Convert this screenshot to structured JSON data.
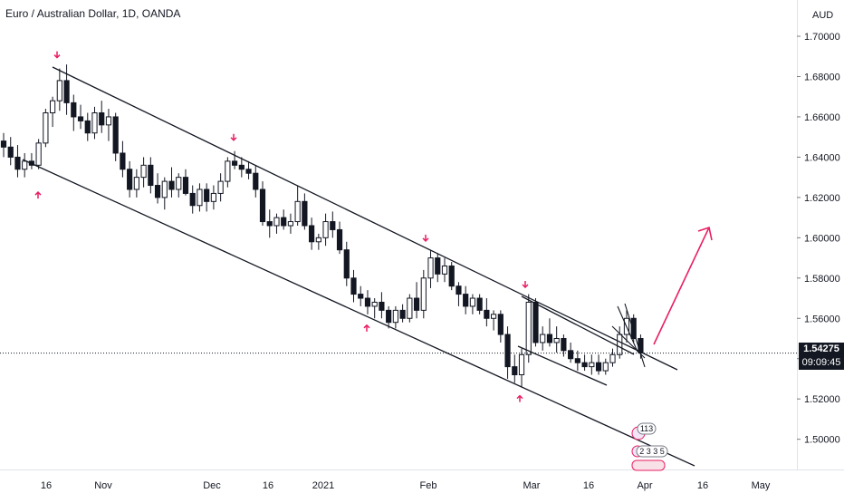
{
  "header": {
    "title": "Euro / Australian Dollar, 1D, OANDA"
  },
  "axis": {
    "currency": "AUD"
  },
  "current_price": {
    "value": "1.54275",
    "countdown": "09:09:45"
  },
  "badges": {
    "count": "113",
    "numbers": "2 3 3 5"
  },
  "chart_data": {
    "type": "candlestick",
    "title": "Euro / Australian Dollar, 1D, OANDA",
    "y_unit": "AUD",
    "ylim": [
      1.485,
      1.718
    ],
    "y_ticks": [
      "1.70000",
      "1.68000",
      "1.66000",
      "1.64000",
      "1.62000",
      "1.60000",
      "1.58000",
      "1.56000",
      "1.54000",
      "1.52000",
      "1.50000"
    ],
    "x_ticks": [
      "16",
      "Nov",
      "Dec",
      "16",
      "2021",
      "Feb",
      "Mar",
      "16",
      "Apr",
      "16",
      "May"
    ],
    "grid": false,
    "colors": {
      "candle": "#131722",
      "trendline": "#131722",
      "marker": "#e91e63",
      "arrow": "#e91e63",
      "background": "#ffffff"
    },
    "series": [
      {
        "ohlc": [
          [
            1.648,
            1.652,
            1.64,
            1.645
          ],
          [
            1.645,
            1.65,
            1.636,
            1.64
          ],
          [
            1.64,
            1.646,
            1.63,
            1.634
          ],
          [
            1.634,
            1.642,
            1.63,
            1.638
          ],
          [
            1.638,
            1.642,
            1.634,
            1.636
          ],
          [
            1.636,
            1.649,
            1.634,
            1.647
          ],
          [
            1.647,
            1.664,
            1.645,
            1.662
          ],
          [
            1.662,
            1.67,
            1.655,
            1.668
          ],
          [
            1.668,
            1.684,
            1.663,
            1.678
          ],
          [
            1.678,
            1.686,
            1.661,
            1.667
          ],
          [
            1.667,
            1.671,
            1.653,
            1.66
          ],
          [
            1.66,
            1.666,
            1.654,
            1.658
          ],
          [
            1.658,
            1.662,
            1.648,
            1.652
          ],
          [
            1.652,
            1.665,
            1.649,
            1.662
          ],
          [
            1.662,
            1.668,
            1.652,
            1.656
          ],
          [
            1.656,
            1.664,
            1.648,
            1.66
          ],
          [
            1.66,
            1.662,
            1.638,
            1.642
          ],
          [
            1.642,
            1.648,
            1.63,
            1.634
          ],
          [
            1.634,
            1.638,
            1.62,
            1.624
          ],
          [
            1.624,
            1.634,
            1.62,
            1.63
          ],
          [
            1.63,
            1.64,
            1.625,
            1.636
          ],
          [
            1.636,
            1.64,
            1.622,
            1.626
          ],
          [
            1.626,
            1.632,
            1.617,
            1.62
          ],
          [
            1.62,
            1.63,
            1.614,
            1.628
          ],
          [
            1.628,
            1.635,
            1.62,
            1.624
          ],
          [
            1.624,
            1.632,
            1.62,
            1.63
          ],
          [
            1.63,
            1.634,
            1.621,
            1.622
          ],
          [
            1.622,
            1.626,
            1.612,
            1.616
          ],
          [
            1.616,
            1.627,
            1.613,
            1.624
          ],
          [
            1.624,
            1.627,
            1.613,
            1.618
          ],
          [
            1.618,
            1.626,
            1.614,
            1.622
          ],
          [
            1.622,
            1.632,
            1.618,
            1.628
          ],
          [
            1.628,
            1.64,
            1.625,
            1.638
          ],
          [
            1.638,
            1.643,
            1.634,
            1.636
          ],
          [
            1.636,
            1.64,
            1.63,
            1.634
          ],
          [
            1.634,
            1.638,
            1.629,
            1.632
          ],
          [
            1.632,
            1.636,
            1.62,
            1.624
          ],
          [
            1.624,
            1.628,
            1.606,
            1.608
          ],
          [
            1.608,
            1.614,
            1.6,
            1.606
          ],
          [
            1.606,
            1.612,
            1.602,
            1.61
          ],
          [
            1.61,
            1.614,
            1.604,
            1.606
          ],
          [
            1.606,
            1.612,
            1.602,
            1.608
          ],
          [
            1.608,
            1.626,
            1.606,
            1.618
          ],
          [
            1.618,
            1.622,
            1.604,
            1.606
          ],
          [
            1.606,
            1.61,
            1.594,
            1.598
          ],
          [
            1.598,
            1.602,
            1.594,
            1.6
          ],
          [
            1.6,
            1.612,
            1.596,
            1.608
          ],
          [
            1.608,
            1.613,
            1.6,
            1.604
          ],
          [
            1.604,
            1.608,
            1.592,
            1.594
          ],
          [
            1.594,
            1.598,
            1.576,
            1.58
          ],
          [
            1.58,
            1.584,
            1.568,
            1.572
          ],
          [
            1.572,
            1.576,
            1.566,
            1.57
          ],
          [
            1.57,
            1.574,
            1.562,
            1.566
          ],
          [
            1.566,
            1.57,
            1.56,
            1.568
          ],
          [
            1.568,
            1.573,
            1.56,
            1.564
          ],
          [
            1.564,
            1.566,
            1.555,
            1.558
          ],
          [
            1.558,
            1.566,
            1.555,
            1.564
          ],
          [
            1.564,
            1.567,
            1.558,
            1.56
          ],
          [
            1.56,
            1.572,
            1.558,
            1.57
          ],
          [
            1.57,
            1.578,
            1.56,
            1.564
          ],
          [
            1.564,
            1.584,
            1.56,
            1.58
          ],
          [
            1.58,
            1.594,
            1.575,
            1.59
          ],
          [
            1.59,
            1.592,
            1.578,
            1.582
          ],
          [
            1.582,
            1.59,
            1.578,
            1.586
          ],
          [
            1.586,
            1.588,
            1.574,
            1.576
          ],
          [
            1.576,
            1.578,
            1.566,
            1.572
          ],
          [
            1.572,
            1.576,
            1.562,
            1.566
          ],
          [
            1.566,
            1.572,
            1.562,
            1.57
          ],
          [
            1.57,
            1.572,
            1.562,
            1.564
          ],
          [
            1.564,
            1.57,
            1.556,
            1.56
          ],
          [
            1.56,
            1.564,
            1.554,
            1.562
          ],
          [
            1.562,
            1.564,
            1.548,
            1.552
          ],
          [
            1.552,
            1.556,
            1.53,
            1.536
          ],
          [
            1.536,
            1.542,
            1.528,
            1.532
          ],
          [
            1.532,
            1.545,
            1.526,
            1.542
          ],
          [
            1.542,
            1.572,
            1.538,
            1.568
          ],
          [
            1.568,
            1.57,
            1.546,
            1.548
          ],
          [
            1.548,
            1.556,
            1.544,
            1.552
          ],
          [
            1.552,
            1.56,
            1.546,
            1.548
          ],
          [
            1.548,
            1.556,
            1.543,
            1.55
          ],
          [
            1.55,
            1.552,
            1.541,
            1.544
          ],
          [
            1.544,
            1.548,
            1.538,
            1.54
          ],
          [
            1.54,
            1.544,
            1.534,
            1.538
          ],
          [
            1.538,
            1.542,
            1.534,
            1.536
          ],
          [
            1.536,
            1.542,
            1.532,
            1.538
          ],
          [
            1.538,
            1.542,
            1.532,
            1.534
          ],
          [
            1.534,
            1.54,
            1.532,
            1.538
          ],
          [
            1.538,
            1.545,
            1.536,
            1.542
          ],
          [
            1.542,
            1.556,
            1.54,
            1.552
          ],
          [
            1.552,
            1.564,
            1.548,
            1.56
          ],
          [
            1.56,
            1.562,
            1.548,
            1.55
          ],
          [
            1.55,
            1.552,
            1.54,
            1.543
          ]
        ]
      }
    ],
    "markers": {
      "down": [
        1.684,
        1.643,
        1.593,
        1.57
      ],
      "up": [
        1.628,
        1.562,
        1.527
      ]
    }
  }
}
